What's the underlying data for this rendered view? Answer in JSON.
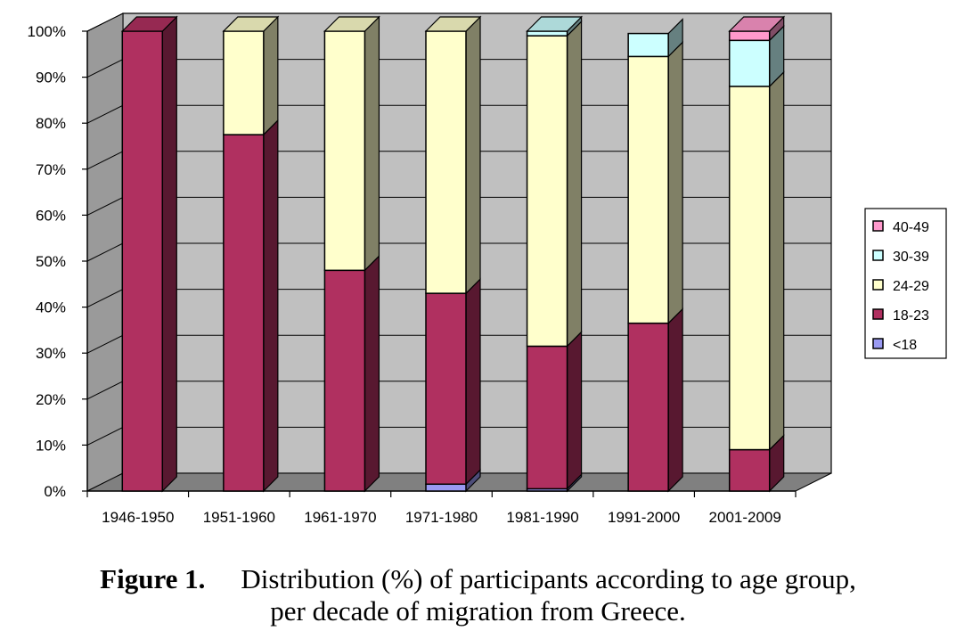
{
  "chart_data": {
    "type": "bar",
    "stacked": true,
    "percent_stacked": true,
    "three_d": true,
    "categories": [
      "1946-1950",
      "1951-1960",
      "1961-1970",
      "1971-1980",
      "1981-1990",
      "1991-2000",
      "2001-2009"
    ],
    "series": [
      {
        "name": "<18",
        "values": [
          0,
          0,
          0,
          1.5,
          0.5,
          0,
          0
        ]
      },
      {
        "name": "18-23",
        "values": [
          100,
          77.5,
          48,
          41.5,
          31,
          36.5,
          9
        ]
      },
      {
        "name": "24-29",
        "values": [
          0,
          22.5,
          52,
          57,
          67.5,
          58,
          79
        ]
      },
      {
        "name": "30-39",
        "values": [
          0,
          0,
          0,
          0,
          1,
          5,
          10
        ]
      },
      {
        "name": "40-49",
        "values": [
          0,
          0,
          0,
          0,
          0,
          0,
          2
        ]
      }
    ],
    "colors": {
      "<18": "#9a9af2",
      "18-23": "#b03060",
      "24-29": "#ffffcc",
      "30-39": "#ccffff",
      "40-49": "#ff99cc"
    },
    "y_ticks": [
      "0%",
      "10%",
      "20%",
      "30%",
      "40%",
      "50%",
      "60%",
      "70%",
      "80%",
      "90%",
      "100%"
    ],
    "ylim": [
      0,
      100
    ],
    "legend_order": [
      "40-49",
      "30-39",
      "24-29",
      "18-23",
      "<18"
    ],
    "legend_position": "right",
    "grid": true,
    "title": "",
    "xlabel": "",
    "ylabel": ""
  },
  "caption": {
    "label": "Figure 1.",
    "line1": "Distribution (%) of participants according to age group,",
    "line2": "per decade of migration from Greece."
  }
}
